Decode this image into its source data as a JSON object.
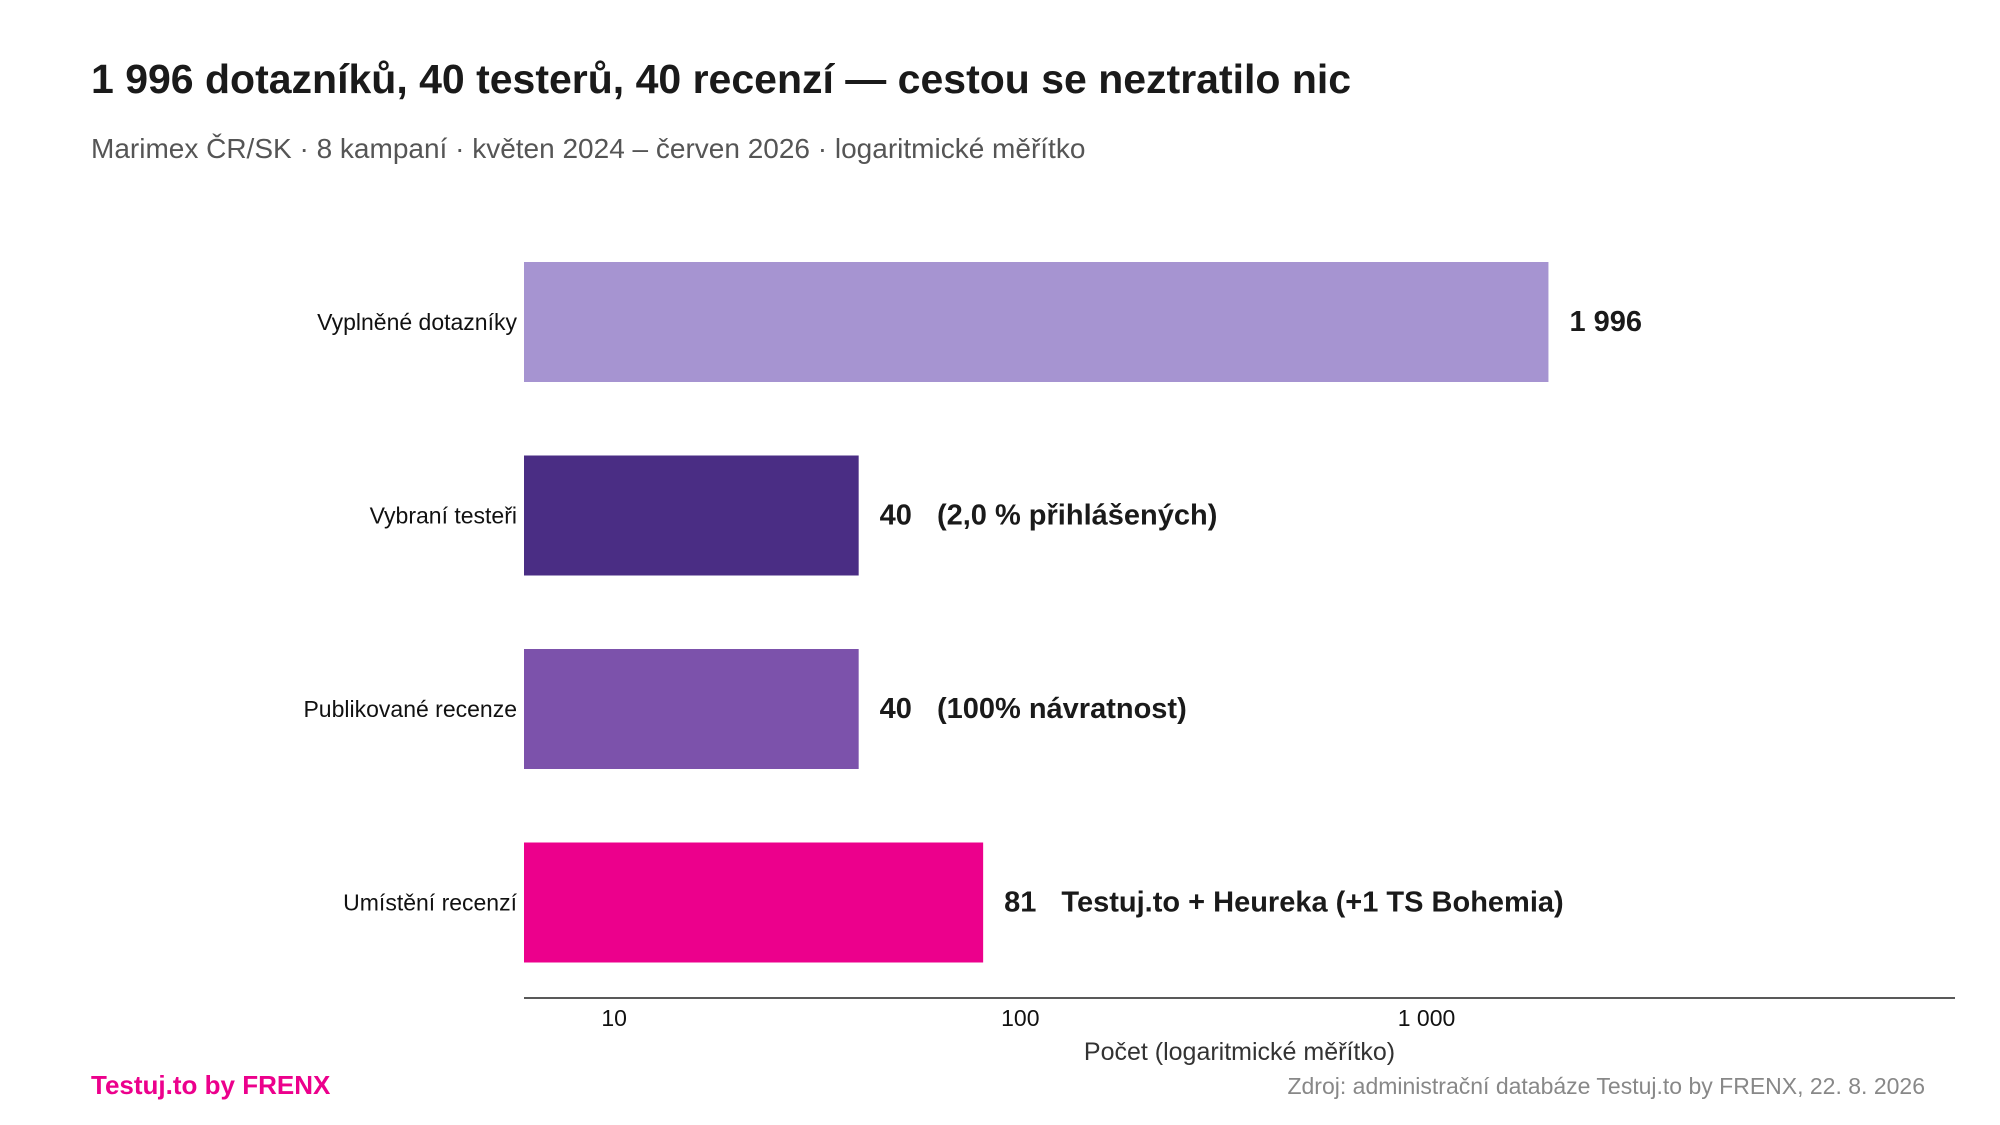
{
  "header": {
    "title": "1 996 dotazníků, 40 testerů, 40 recenzí — cestou se neztratilo nic",
    "subtitle": "Marimex ČR/SK · 8 kampaní · květen 2024 – červen 2026 · logaritmické měřítko"
  },
  "footer": {
    "brand": "Testuj.to by FRENX",
    "source": "Zdroj: administrační databáze Testuj.to by FRENX, 22. 8. 2026"
  },
  "chart_data": {
    "type": "bar",
    "orientation": "horizontal",
    "scale": "log",
    "title": "1 996 dotazníků, 40 testerů, 40 recenzí — cestou se neztratilo nic",
    "subtitle": "Marimex ČR/SK · 8 kampaní · květen 2024 – červen 2026 · logaritmické měřítko",
    "xlabel": "Počet (logaritmické měřítko)",
    "ylabel": "",
    "xlim": [
      6,
      20000
    ],
    "grid": false,
    "legend": "none",
    "categories": [
      "Vyplněné dotazníky",
      "Vybraní testeři",
      "Publikované recenze",
      "Umístění recenzí"
    ],
    "values": [
      1996,
      40,
      40,
      81
    ],
    "value_labels": [
      "1 996",
      "40",
      "40",
      "81"
    ],
    "annotations": [
      "",
      "(2,0 % přihlášených)",
      "(100% návratnost)",
      "Testuj.to + Heureka (+1 TS Bohemia)"
    ],
    "colors": [
      "#a694d1",
      "#4a2d84",
      "#7c52ab",
      "#ec008c"
    ],
    "ticks": [
      10,
      100,
      1000
    ],
    "tick_labels": [
      "10",
      "100",
      "1 000"
    ]
  }
}
